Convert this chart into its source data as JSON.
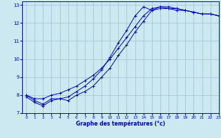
{
  "xlabel": "Graphe des températures (°c)",
  "bg_color": "#cce8f0",
  "grid_color": "#9fbfcf",
  "line_color": "#0000bb",
  "xlim": [
    -0.5,
    23
  ],
  "ylim": [
    7,
    13.2
  ],
  "xticks": [
    0,
    1,
    2,
    3,
    4,
    5,
    6,
    7,
    8,
    9,
    10,
    11,
    12,
    13,
    14,
    15,
    16,
    17,
    18,
    19,
    20,
    21,
    22,
    23
  ],
  "yticks": [
    7,
    8,
    9,
    10,
    11,
    12,
    13
  ],
  "series1_x": [
    0,
    1,
    2,
    3,
    4,
    5,
    6,
    7,
    8,
    9,
    10,
    11,
    12,
    13,
    14,
    15,
    16,
    17,
    18,
    19,
    20,
    21,
    22,
    23
  ],
  "series1_y": [
    7.9,
    7.6,
    7.4,
    7.7,
    7.8,
    7.7,
    8.0,
    8.2,
    8.5,
    9.0,
    9.5,
    10.2,
    10.8,
    11.5,
    12.1,
    12.7,
    12.9,
    12.8,
    12.8,
    12.7,
    12.6,
    12.5,
    12.5,
    12.4
  ],
  "series2_x": [
    0,
    1,
    2,
    3,
    4,
    5,
    6,
    7,
    8,
    9,
    10,
    11,
    12,
    13,
    14,
    15,
    16,
    17,
    18,
    19,
    20,
    21,
    22,
    23
  ],
  "series2_y": [
    8.0,
    7.7,
    7.5,
    7.8,
    7.8,
    7.9,
    8.2,
    8.5,
    8.9,
    9.4,
    10.1,
    10.9,
    11.6,
    12.4,
    12.9,
    12.7,
    12.8,
    12.8,
    12.7,
    12.7,
    12.6,
    12.5,
    12.5,
    12.4
  ],
  "series3_x": [
    0,
    1,
    2,
    3,
    4,
    5,
    6,
    7,
    8,
    9,
    10,
    11,
    12,
    13,
    14,
    15,
    16,
    17,
    18,
    19,
    20,
    21,
    22,
    23
  ],
  "series3_y": [
    8.0,
    7.8,
    7.8,
    8.0,
    8.1,
    8.3,
    8.5,
    8.8,
    9.1,
    9.5,
    10.0,
    10.6,
    11.2,
    11.8,
    12.4,
    12.8,
    12.9,
    12.9,
    12.8,
    12.7,
    12.6,
    12.5,
    12.5,
    12.4
  ]
}
